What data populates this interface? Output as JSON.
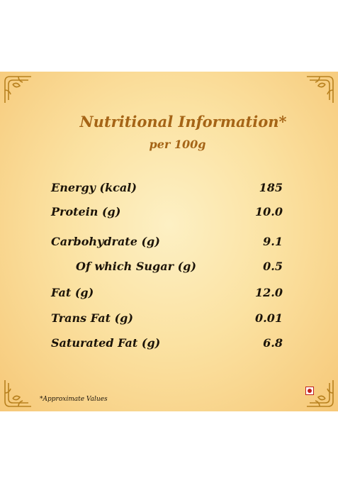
{
  "card": {
    "title": "Nutritional Information*",
    "subtitle": "per 100g",
    "rows": [
      {
        "label": "Energy (kcal)",
        "value": "185"
      },
      {
        "label": "Protein (g)",
        "value": "10.0"
      },
      {
        "label": "Carbohydrate (g)",
        "value": "9.1"
      },
      {
        "label": "Of which Sugar (g)",
        "value": "0.5"
      },
      {
        "label": "Fat (g)",
        "value": "12.0"
      },
      {
        "label": "Trans Fat (g)",
        "value": "0.01"
      },
      {
        "label": "Saturated Fat (g)",
        "value": "6.8"
      }
    ],
    "footnote": "*Approximate Values",
    "diet_mark": "non-vegetarian-mark-icon"
  },
  "colors": {
    "title": "#a56416",
    "text": "#1c1409",
    "background_center": "#fdf0c4",
    "background_edge": "#f6c878",
    "diet_mark": "#c0201e"
  }
}
